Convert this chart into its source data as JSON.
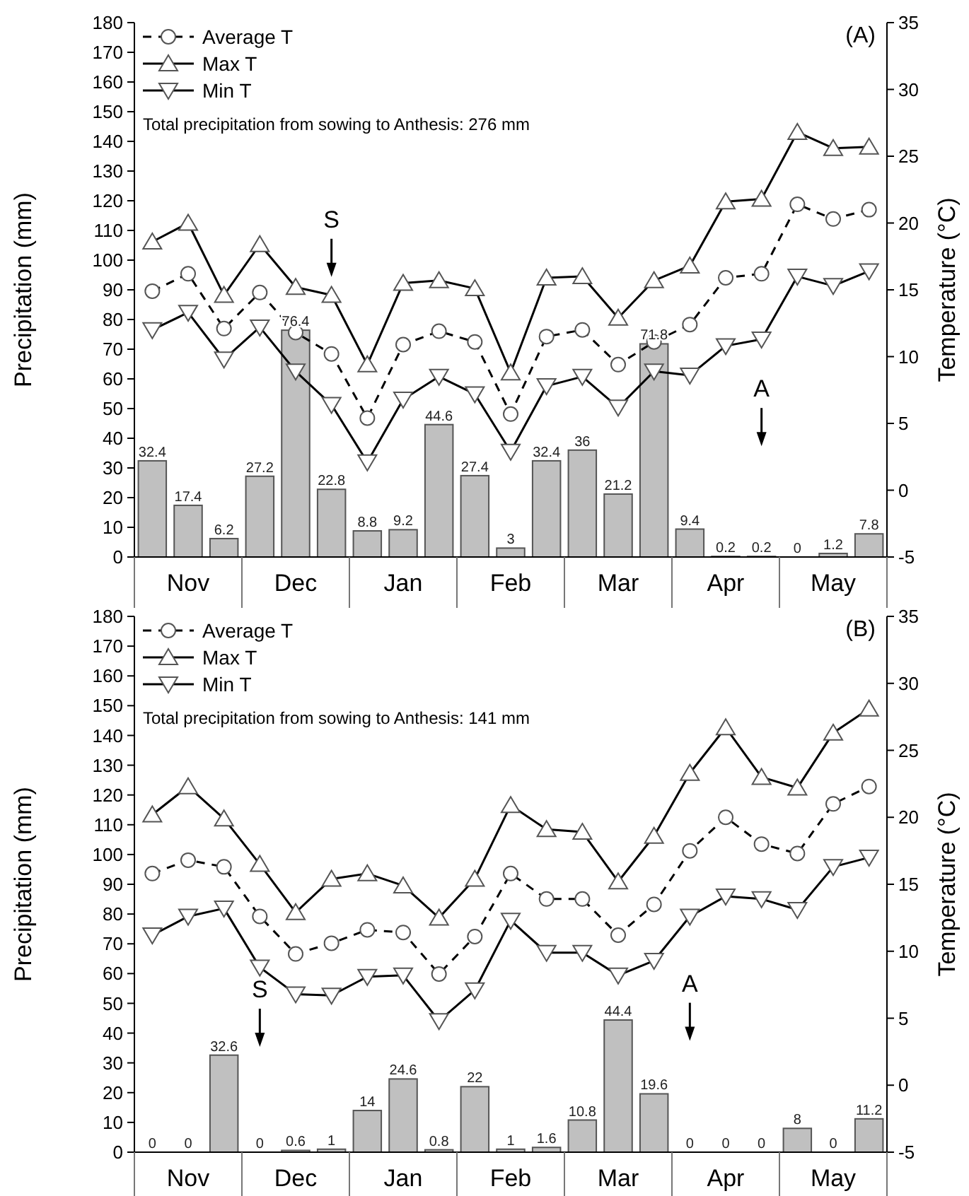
{
  "chart_data": [
    {
      "type": "bar",
      "title": "(A)",
      "ylabel": "Precipitation (mm)",
      "y2label": "Temperature (°C)",
      "categories": [
        null,
        "Nov",
        null,
        null,
        "Dec",
        null,
        null,
        "Jan",
        null,
        null,
        "Feb",
        null,
        null,
        "Mar",
        null,
        null,
        "Apr",
        null,
        null,
        "May",
        null
      ],
      "ylim": [
        0,
        180
      ],
      "yticks": [
        0,
        10,
        20,
        30,
        40,
        50,
        60,
        70,
        80,
        90,
        100,
        110,
        120,
        130,
        140,
        150,
        160,
        170,
        180
      ],
      "y2lim": [
        -5,
        35
      ],
      "y2ticks": [
        -5,
        0,
        5,
        10,
        15,
        20,
        25,
        30,
        35
      ],
      "legend": "top left",
      "annotations": [
        "Total precipitation from sowing to Anthesis: 276 mm",
        "S",
        "A"
      ],
      "series": [
        {
          "type": "bar",
          "color": "#c0c0c0",
          "values": [
            32.4,
            17.4,
            6.2,
            27.2,
            76.4,
            22.8,
            8.8,
            9.2,
            44.6,
            27.4,
            3,
            32.4,
            36,
            21.2,
            71.8,
            9.4,
            0.2,
            0.2,
            0,
            1.2,
            7.8
          ],
          "value_labels": [
            "32.4",
            "17.4",
            "6.2",
            "27.2",
            "76.4",
            "22.8",
            "8.8",
            "9.2",
            "44.6",
            "27.4",
            "3",
            "32.4",
            "36",
            "21.2",
            "71.8",
            "9.4",
            "0.2",
            "0.2",
            "0",
            "1.2",
            "7.8"
          ]
        },
        {
          "type": "line",
          "axis": "y2",
          "name": "Average T",
          "color": "#000000",
          "marker": "circle",
          "line_style": "dashed",
          "values": [
            14.9,
            16.2,
            12.1,
            14.8,
            11.8,
            10.2,
            5.4,
            10.9,
            11.9,
            11.1,
            5.7,
            11.5,
            12.0,
            9.4,
            11.1,
            12.4,
            15.9,
            16.2,
            21.4,
            20.3,
            21.0
          ]
        },
        {
          "type": "line",
          "axis": "y2",
          "name": "Max T",
          "color": "#000000",
          "marker": "triangle",
          "line_style": "solid",
          "values": [
            18.6,
            20.0,
            14.6,
            18.4,
            15.2,
            14.6,
            9.4,
            15.5,
            15.7,
            15.1,
            8.8,
            15.9,
            16.0,
            12.9,
            15.7,
            16.8,
            21.6,
            21.8,
            26.8,
            25.6,
            25.7
          ]
        },
        {
          "type": "line",
          "axis": "y2",
          "name": "Min T",
          "color": "#000000",
          "marker": "triangle-down",
          "line_style": "solid",
          "values": [
            12.0,
            13.3,
            9.8,
            12.2,
            8.9,
            6.4,
            2.1,
            6.8,
            8.5,
            7.2,
            2.9,
            7.8,
            8.5,
            6.2,
            8.9,
            8.6,
            10.8,
            11.3,
            16.0,
            15.3,
            16.4
          ]
        }
      ]
    },
    {
      "type": "bar",
      "title": "(B)",
      "ylabel": "Precipitation (mm)",
      "y2label": "Temperature (°C)",
      "categories": [
        null,
        "Nov",
        null,
        null,
        "Dec",
        null,
        null,
        "Jan",
        null,
        null,
        "Feb",
        null,
        null,
        "Mar",
        null,
        null,
        "Apr",
        null,
        null,
        "May",
        null
      ],
      "ylim": [
        0,
        180
      ],
      "yticks": [
        0,
        10,
        20,
        30,
        40,
        50,
        60,
        70,
        80,
        90,
        100,
        110,
        120,
        130,
        140,
        150,
        160,
        170,
        180
      ],
      "y2lim": [
        -5,
        35
      ],
      "y2ticks": [
        -5,
        0,
        5,
        10,
        15,
        20,
        25,
        30,
        35
      ],
      "legend": "top left",
      "annotations": [
        "Total precipitation from sowing to Anthesis: 141 mm",
        "S",
        "A"
      ],
      "series": [
        {
          "type": "bar",
          "color": "#c0c0c0",
          "values": [
            0,
            0,
            32.6,
            0,
            0.6,
            1,
            14,
            24.6,
            0.8,
            22,
            1,
            1.6,
            10.8,
            44.4,
            19.6,
            0,
            0,
            0,
            8,
            0,
            11.2
          ],
          "value_labels": [
            "0",
            "0",
            "32.6",
            "0",
            "0.6",
            "1",
            "14",
            "24.6",
            "0.8",
            "22",
            "1",
            "1.6",
            "10.8",
            "44.4",
            "19.6",
            "0",
            "0",
            "0",
            "8",
            "0",
            "11.2"
          ]
        },
        {
          "type": "line",
          "axis": "y2",
          "name": "Average T",
          "color": "#000000",
          "marker": "circle",
          "line_style": "dashed",
          "values": [
            15.8,
            16.8,
            16.3,
            12.6,
            9.8,
            10.6,
            11.6,
            11.4,
            8.3,
            11.1,
            15.8,
            13.9,
            13.9,
            11.2,
            13.5,
            17.5,
            20.0,
            18.0,
            17.3,
            21.0,
            22.3
          ]
        },
        {
          "type": "line",
          "axis": "y2",
          "name": "Max T",
          "color": "#000000",
          "marker": "triangle",
          "line_style": "solid",
          "values": [
            20.2,
            22.3,
            19.9,
            16.5,
            12.9,
            15.4,
            15.8,
            14.9,
            12.5,
            15.4,
            20.9,
            19.1,
            18.9,
            15.2,
            18.6,
            23.3,
            26.7,
            23.0,
            22.2,
            26.3,
            28.1
          ]
        },
        {
          "type": "line",
          "axis": "y2",
          "name": "Min T",
          "color": "#000000",
          "marker": "triangle-down",
          "line_style": "solid",
          "values": [
            11.2,
            12.6,
            13.2,
            8.8,
            6.8,
            6.7,
            8.1,
            8.2,
            4.8,
            7.1,
            12.3,
            9.9,
            9.9,
            8.2,
            9.3,
            12.6,
            14.1,
            13.9,
            13.1,
            16.3,
            17.0
          ]
        }
      ]
    }
  ]
}
